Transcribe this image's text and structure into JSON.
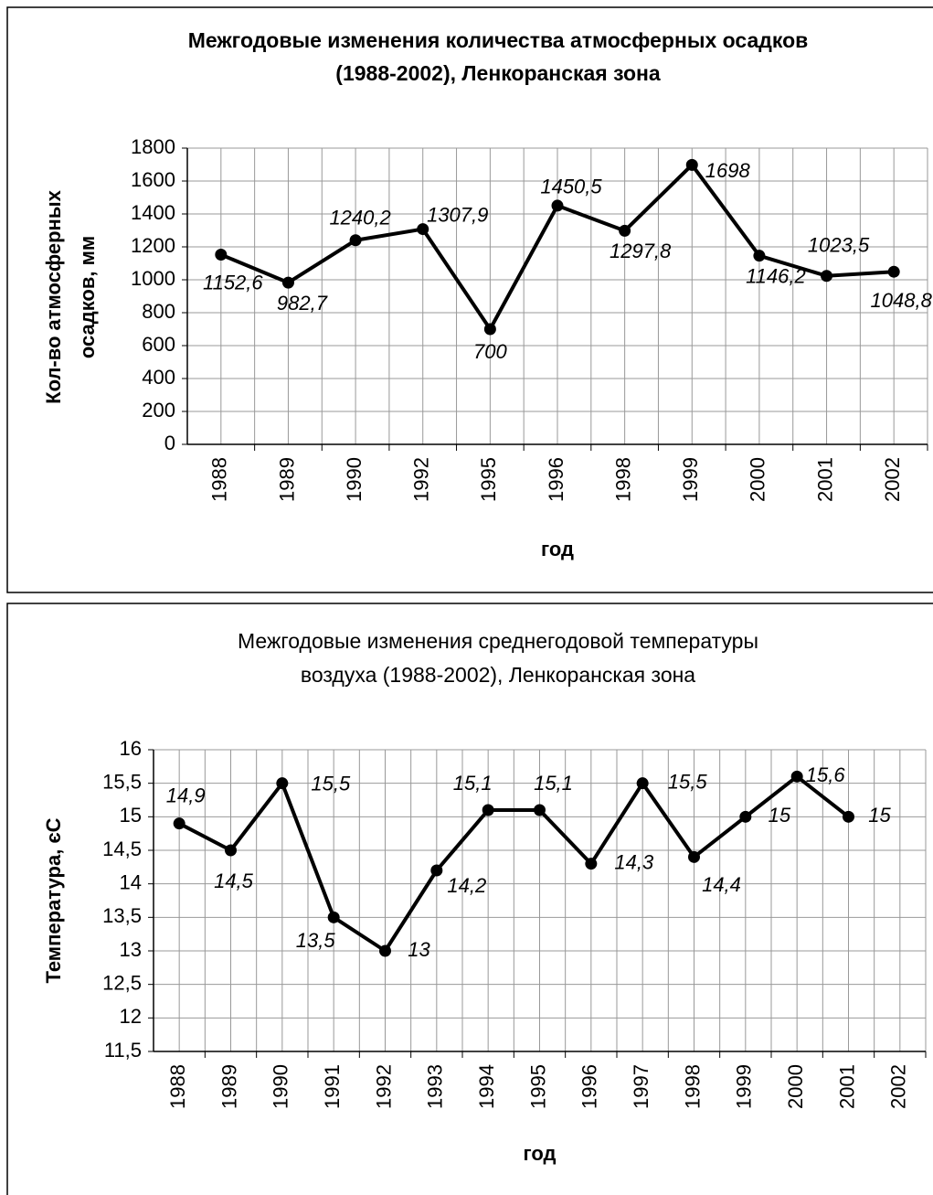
{
  "chart_data": [
    {
      "type": "line",
      "title": [
        "Межгодовые изменения количества атмосферных осадков",
        "(1988-2002), Ленкоранская зона"
      ],
      "y_label": [
        "Кол-во атмосферных",
        "осадков, мм"
      ],
      "x_label": "год",
      "categories": [
        "1988",
        "1989",
        "1990",
        "1992",
        "1995",
        "1996",
        "1998",
        "1999",
        "2000",
        "2001",
        "2002"
      ],
      "series": [
        {
          "name": "Кол-во атмосферных осадков",
          "color": "#000000",
          "values": [
            1152.6,
            982.7,
            1240.2,
            1307.9,
            700,
            1450.5,
            1297.8,
            1698,
            1146.2,
            1023.5,
            1048.8
          ],
          "value_labels": [
            "1152,6",
            "982,7",
            "1240,2",
            "1307,9",
            "700",
            "1450,5",
            "1297,8",
            "1698",
            "1146,2",
            "1023,5",
            "1048,8"
          ]
        }
      ],
      "ylim": [
        0,
        1800
      ],
      "yticks": [
        0,
        200,
        400,
        600,
        800,
        1000,
        1200,
        1400,
        1600,
        1800
      ],
      "grid": true
    },
    {
      "type": "line",
      "title": [
        "Межгодовые изменения среднегодовой температуры",
        "воздуха (1988-2002), Ленкоранская зона"
      ],
      "y_label": [
        "Температура, єС"
      ],
      "x_label": "год",
      "categories": [
        "1988",
        "1989",
        "1990",
        "1991",
        "1992",
        "1993",
        "1994",
        "1995",
        "1996",
        "1997",
        "1998",
        "1999",
        "2000",
        "2001",
        "2002"
      ],
      "series": [
        {
          "name": "Температура",
          "color": "#000000",
          "values": [
            14.9,
            14.5,
            15.5,
            13.5,
            13,
            14.2,
            15.1,
            15.1,
            14.3,
            15.5,
            14.4,
            15,
            15.6,
            15,
            null
          ],
          "value_labels": [
            "14,9",
            "14,5",
            "15,5",
            "13,5",
            "13",
            "14,2",
            "15,1",
            "15,1",
            "14,3",
            "15,5",
            "14,4",
            "15",
            "15,6",
            "15",
            null
          ]
        }
      ],
      "ylim": [
        11.5,
        16
      ],
      "yticks": [
        {
          "value": 11.5,
          "label": "11,5"
        },
        12,
        {
          "value": 12.5,
          "label": "12,5"
        },
        13,
        {
          "value": 13.5,
          "label": "13,5"
        },
        14,
        {
          "value": 14.5,
          "label": "14,5"
        },
        15,
        {
          "value": 15.5,
          "label": "15,5"
        },
        16
      ],
      "grid": true
    }
  ]
}
